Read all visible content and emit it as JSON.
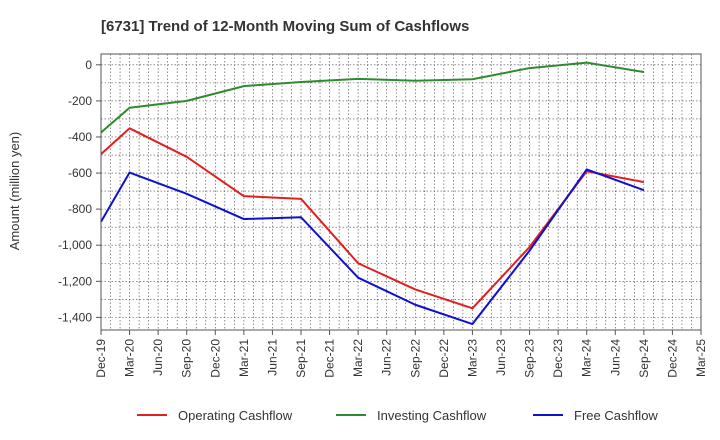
{
  "chart_data": {
    "type": "line",
    "title": "[6731]  Trend of 12-Month Moving Sum of Cashflows",
    "ylabel": "Amount (million yen)",
    "xlabel": "",
    "ylim": [
      -1470,
      60
    ],
    "yticks": [
      0,
      -200,
      -400,
      -600,
      -800,
      -1000,
      -1200,
      -1400
    ],
    "ytick_labels": [
      "0",
      "-200",
      "-400",
      "-600",
      "-800",
      "-1,000",
      "-1,200",
      "-1,400"
    ],
    "categories": [
      "Dec-19",
      "Mar-20",
      "Jun-20",
      "Sep-20",
      "Dec-20",
      "Mar-21",
      "Jun-21",
      "Sep-21",
      "Dec-21",
      "Mar-22",
      "Jun-22",
      "Sep-22",
      "Dec-22",
      "Mar-23",
      "Jun-23",
      "Sep-23",
      "Dec-23",
      "Mar-24",
      "Jun-24",
      "Sep-24",
      "Dec-24",
      "Mar-25"
    ],
    "grid": true,
    "legend_position": "bottom",
    "series": [
      {
        "name": "Operating Cashflow",
        "color": "#e02020",
        "values": [
          -495,
          -352,
          null,
          -510,
          null,
          -728,
          null,
          -743,
          null,
          -1100,
          null,
          -1245,
          null,
          -1350,
          null,
          -1010,
          null,
          -590,
          null,
          -650,
          null,
          null
        ]
      },
      {
        "name": "Investing Cashflow",
        "color": "#2e8b2e",
        "values": [
          -375,
          -238,
          null,
          -200,
          null,
          -118,
          null,
          -95,
          null,
          -78,
          null,
          -88,
          null,
          -80,
          null,
          -18,
          null,
          12,
          null,
          -40,
          null,
          null
        ]
      },
      {
        "name": "Free Cashflow",
        "color": "#1010d0",
        "values": [
          -870,
          -597,
          null,
          -715,
          null,
          -855,
          null,
          -845,
          null,
          -1180,
          null,
          -1330,
          null,
          -1437,
          null,
          -1030,
          null,
          -580,
          null,
          -695,
          null,
          null
        ]
      }
    ]
  }
}
